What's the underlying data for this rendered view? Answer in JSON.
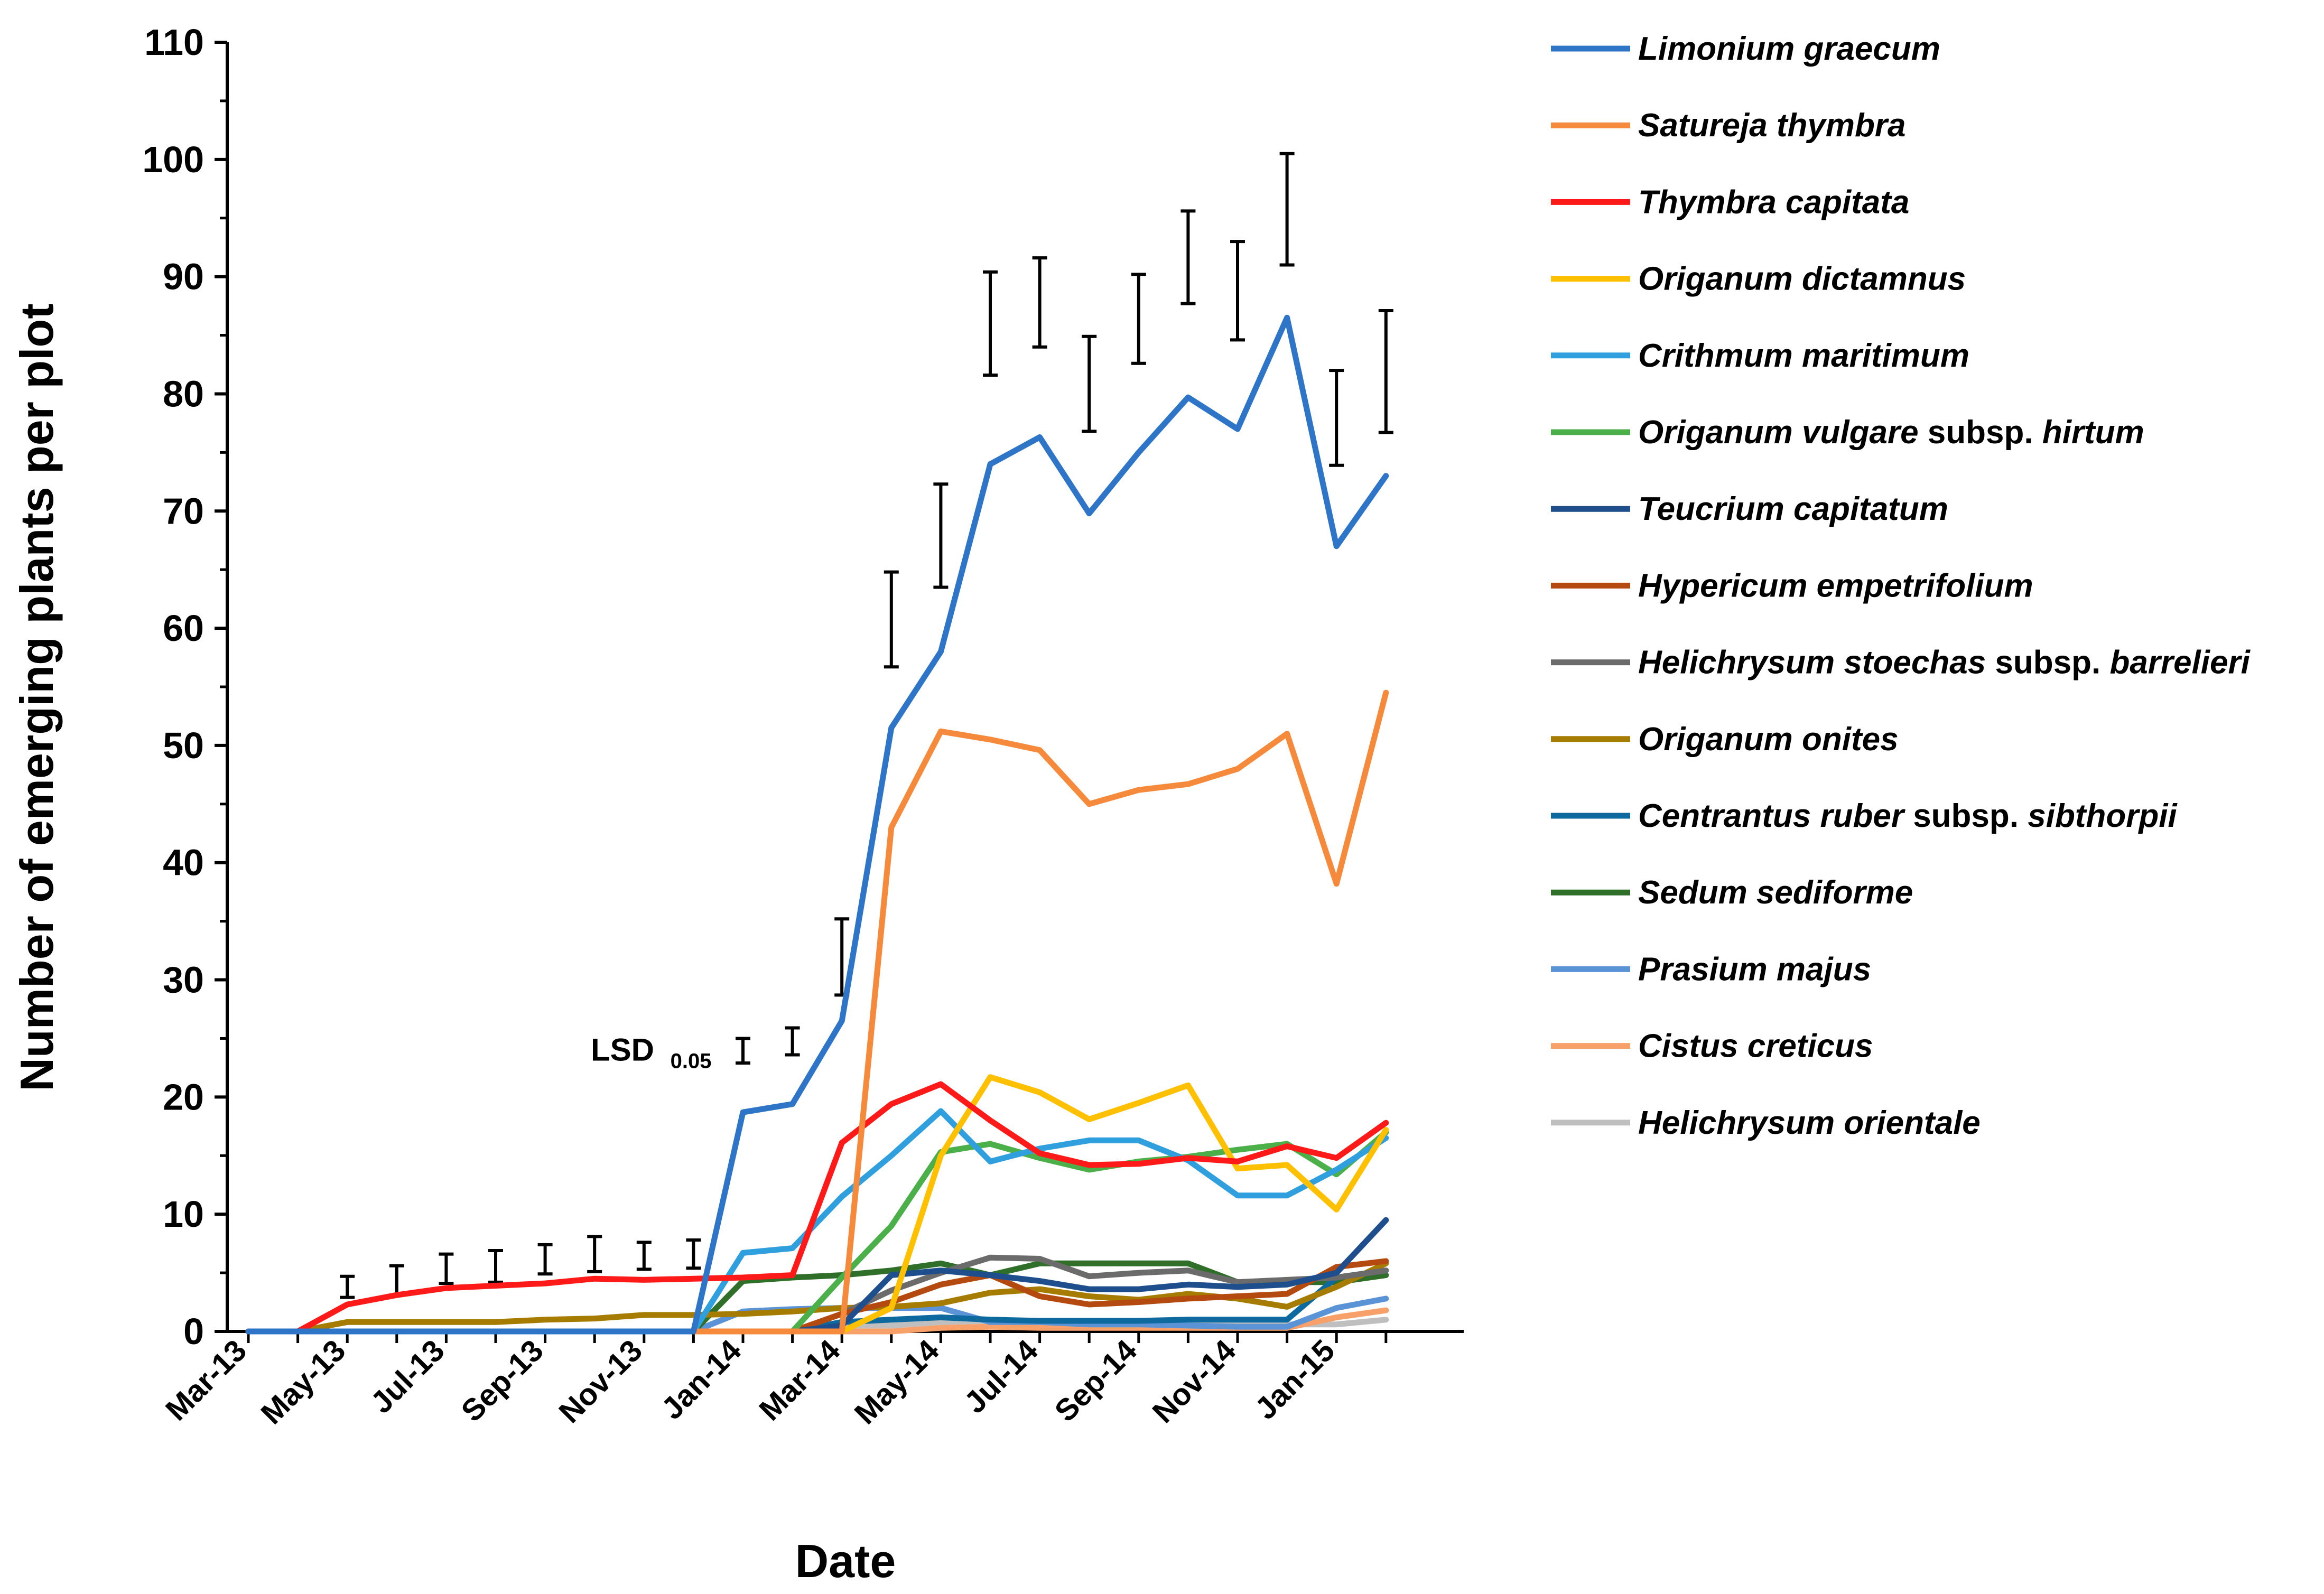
{
  "chart_data": {
    "type": "line",
    "xlabel": "Date",
    "ylabel": "Number of emerging plants per plot",
    "ylim": [
      0,
      110
    ],
    "yticks": [
      0,
      10,
      20,
      30,
      40,
      50,
      60,
      70,
      80,
      90,
      100,
      110
    ],
    "x": [
      "2013-03",
      "2013-04",
      "2013-05",
      "2013-06",
      "2013-07",
      "2013-08",
      "2013-09",
      "2013-10",
      "2013-11",
      "2013-12",
      "2014-01",
      "2014-02",
      "2014-03",
      "2014-04",
      "2014-05",
      "2014-06",
      "2014-07",
      "2014-08",
      "2014-09",
      "2014-10",
      "2014-11",
      "2014-12",
      "2015-01",
      "2015-02"
    ],
    "xtick_labels": [
      "Mar-13",
      "May-13",
      "Jul-13",
      "Sep-13",
      "Nov-13",
      "Jan-14",
      "Mar-14",
      "May-14",
      "Jul-14",
      "Sep-14",
      "Nov-14",
      "Jan-15"
    ],
    "grid": false,
    "legend_position": "right",
    "annotation": {
      "main": "LSD",
      "sub": "0.05"
    },
    "series": [
      {
        "name": "Limonium graecum",
        "name_parts": [
          {
            "t": "Limonium graecum",
            "i": true
          }
        ],
        "color": "#2E75C8",
        "values": [
          0,
          0,
          0,
          0,
          0,
          0,
          0,
          0,
          0,
          0,
          18.7,
          19.4,
          26.5,
          51.5,
          58,
          74,
          76.3,
          69.8,
          75,
          79.7,
          77,
          86.5,
          67,
          73
        ]
      },
      {
        "name": "Satureja thymbra",
        "name_parts": [
          {
            "t": "Satureja thymbra",
            "i": true
          }
        ],
        "color": "#F58A3C",
        "values": [
          0,
          0,
          0,
          0,
          0,
          0,
          0,
          0,
          0,
          0,
          0,
          0,
          0,
          43,
          51.2,
          50.5,
          49.6,
          45,
          46.2,
          46.7,
          48,
          51,
          38.2,
          54.5
        ]
      },
      {
        "name": "Thymbra capitata",
        "name_parts": [
          {
            "t": "Thymbra capitata",
            "i": true
          }
        ],
        "color": "#FF1A1A",
        "values": [
          0,
          0,
          2.3,
          3.1,
          3.7,
          3.9,
          4.1,
          4.5,
          4.4,
          4.5,
          4.6,
          4.8,
          16.1,
          19.4,
          21.1,
          18,
          15.2,
          14.2,
          14.3,
          14.8,
          14.5,
          15.8,
          14.8,
          17.8
        ]
      },
      {
        "name": "Origanum dictamnus",
        "name_parts": [
          {
            "t": "Origanum dictamnus",
            "i": true
          }
        ],
        "color": "#FFC000",
        "values": [
          0,
          0,
          0,
          0,
          0,
          0,
          0,
          0,
          0,
          0,
          0,
          0,
          0,
          2,
          15,
          21.7,
          20.4,
          18.1,
          19.5,
          21,
          13.9,
          14.2,
          10.4,
          17.2
        ]
      },
      {
        "name": "Crithmum maritimum",
        "name_parts": [
          {
            "t": "Crithmum maritimum",
            "i": true
          }
        ],
        "color": "#2FA0DD",
        "values": [
          0,
          0,
          0,
          0,
          0,
          0,
          0,
          0,
          0,
          0,
          6.7,
          7.1,
          11.5,
          15,
          18.8,
          14.5,
          15.6,
          16.3,
          16.3,
          14.6,
          11.6,
          11.6,
          13.8,
          16.5
        ]
      },
      {
        "name": "Origanum vulgare subsp. hirtum",
        "name_parts": [
          {
            "t": "Origanum vulgare",
            "i": true
          },
          {
            "t": " subsp. ",
            "i": false
          },
          {
            "t": "hirtum",
            "i": true
          }
        ],
        "color": "#4CB04A",
        "values": [
          0,
          0,
          0,
          0,
          0,
          0,
          0,
          0,
          0,
          0,
          0,
          0,
          4.6,
          9,
          15.3,
          16,
          14.8,
          13.8,
          14.5,
          14.9,
          15.5,
          16,
          13.4,
          17
        ]
      },
      {
        "name": "Teucrium capitatum",
        "name_parts": [
          {
            "t": "Teucrium capitatum",
            "i": true
          }
        ],
        "color": "#1F4E8C",
        "values": [
          0,
          0,
          0,
          0,
          0,
          0,
          0,
          0,
          0,
          0,
          0,
          0,
          0.5,
          4.8,
          5.2,
          4.8,
          4.3,
          3.6,
          3.6,
          4,
          3.8,
          4,
          5,
          9.5
        ]
      },
      {
        "name": "Hypericum empetrifolium",
        "name_parts": [
          {
            "t": "Hypericum empetrifolium",
            "i": true
          }
        ],
        "color": "#B54A10",
        "values": [
          0,
          0,
          0,
          0,
          0,
          0,
          0,
          0,
          0,
          0,
          0,
          0,
          1.5,
          2.5,
          4,
          4.8,
          3,
          2.3,
          2.5,
          2.8,
          3,
          3.2,
          5.5,
          6
        ]
      },
      {
        "name": "Helichrysum stoechas subsp. barrelieri",
        "name_parts": [
          {
            "t": "Helichrysum stoechas",
            "i": true
          },
          {
            "t": " subsp. ",
            "i": false
          },
          {
            "t": "barrelieri",
            "i": true
          }
        ],
        "color": "#6B6B6B",
        "values": [
          0,
          0,
          0,
          0,
          0,
          0,
          0,
          0,
          0,
          0,
          0,
          0,
          1.5,
          3.5,
          5,
          6.3,
          6.2,
          4.7,
          5,
          5.2,
          4.2,
          4.4,
          4.6,
          5.2
        ]
      },
      {
        "name": "Origanum onites",
        "name_parts": [
          {
            "t": "Origanum onites",
            "i": true
          }
        ],
        "color": "#A67C00",
        "values": [
          0,
          0,
          0.8,
          0.8,
          0.8,
          0.8,
          1,
          1.1,
          1.4,
          1.4,
          1.5,
          1.7,
          2,
          2.1,
          2.4,
          3.3,
          3.6,
          3,
          2.7,
          3.2,
          2.8,
          2.1,
          3.8,
          5.8
        ]
      },
      {
        "name": "Centrantus ruber subsp. sibthorpii",
        "name_parts": [
          {
            "t": "Centrantus ruber",
            "i": true
          },
          {
            "t": " subsp. ",
            "i": false
          },
          {
            "t": "sibthorpii",
            "i": true
          }
        ],
        "color": "#0E6A9E",
        "values": [
          0,
          0,
          0,
          0,
          0,
          0,
          0,
          0,
          0,
          0,
          0,
          0,
          0.8,
          1,
          1.2,
          1,
          0.9,
          0.9,
          0.9,
          1,
          1,
          1,
          4.6,
          5.2
        ]
      },
      {
        "name": "Sedum sediforme",
        "name_parts": [
          {
            "t": "Sedum sediforme",
            "i": true
          }
        ],
        "color": "#2F6F2A",
        "values": [
          0,
          0,
          0,
          0,
          0,
          0,
          0,
          0,
          0,
          0,
          4.3,
          4.6,
          4.8,
          5.2,
          5.8,
          4.8,
          5.8,
          5.8,
          5.8,
          5.8,
          4.2,
          4.2,
          4.2,
          4.8
        ]
      },
      {
        "name": "Prasium majus",
        "name_parts": [
          {
            "t": "Prasium majus",
            "i": true
          }
        ],
        "color": "#5A93D6",
        "values": [
          0,
          0,
          0,
          0,
          0,
          0,
          0,
          0,
          0,
          0,
          1.7,
          1.9,
          2,
          2,
          2,
          0.8,
          0.8,
          0.6,
          0.6,
          0.5,
          0.4,
          0.4,
          2,
          2.8
        ]
      },
      {
        "name": "Cistus creticus",
        "name_parts": [
          {
            "t": "Cistus creticus",
            "i": true
          }
        ],
        "color": "#F7A06A",
        "values": [
          0,
          0,
          0,
          0,
          0,
          0,
          0,
          0,
          0,
          0,
          0,
          0,
          0,
          0,
          0.3,
          0.4,
          0.3,
          0.3,
          0.3,
          0.3,
          0.3,
          0.3,
          1.2,
          1.8
        ]
      },
      {
        "name": "Helichrysum orientale",
        "name_parts": [
          {
            "t": "Helichrysum orientale",
            "i": true
          }
        ],
        "color": "#BFBFBF",
        "values": [
          0,
          0,
          0,
          0,
          0,
          0,
          0,
          0,
          0,
          0,
          0,
          0,
          0.5,
          0.5,
          0.8,
          0.9,
          0.8,
          0.7,
          0.7,
          0.7,
          0.6,
          0.6,
          0.6,
          1
        ]
      }
    ],
    "error_bars": [
      {
        "x": "2013-05",
        "low": 2.9,
        "high": 4.7
      },
      {
        "x": "2013-06",
        "low": 3.1,
        "high": 5.6
      },
      {
        "x": "2013-07",
        "low": 4.1,
        "high": 6.6
      },
      {
        "x": "2013-08",
        "low": 4.2,
        "high": 6.9
      },
      {
        "x": "2013-09",
        "low": 4.9,
        "high": 7.4
      },
      {
        "x": "2013-10",
        "low": 5.1,
        "high": 8.1
      },
      {
        "x": "2013-11",
        "low": 5.3,
        "high": 7.6
      },
      {
        "x": "2013-12",
        "low": 5.4,
        "high": 7.8
      },
      {
        "x": "2014-01",
        "low": 22.9,
        "high": 25.0
      },
      {
        "x": "2014-02",
        "low": 23.6,
        "high": 25.9
      },
      {
        "x": "2014-03",
        "low": 28.7,
        "high": 35.2
      },
      {
        "x": "2014-04",
        "low": 56.7,
        "high": 64.8
      },
      {
        "x": "2014-05",
        "low": 63.5,
        "high": 72.3
      },
      {
        "x": "2014-06",
        "low": 81.6,
        "high": 90.4
      },
      {
        "x": "2014-07",
        "low": 84.0,
        "high": 91.6
      },
      {
        "x": "2014-08",
        "low": 76.8,
        "high": 84.9
      },
      {
        "x": "2014-09",
        "low": 82.6,
        "high": 90.2
      },
      {
        "x": "2014-10",
        "low": 87.7,
        "high": 95.6
      },
      {
        "x": "2014-11",
        "low": 84.6,
        "high": 93.0
      },
      {
        "x": "2014-12",
        "low": 91.0,
        "high": 100.5
      },
      {
        "x": "2015-01",
        "low": 73.9,
        "high": 82.0
      },
      {
        "x": "2015-02",
        "low": 76.7,
        "high": 87.1
      }
    ]
  }
}
